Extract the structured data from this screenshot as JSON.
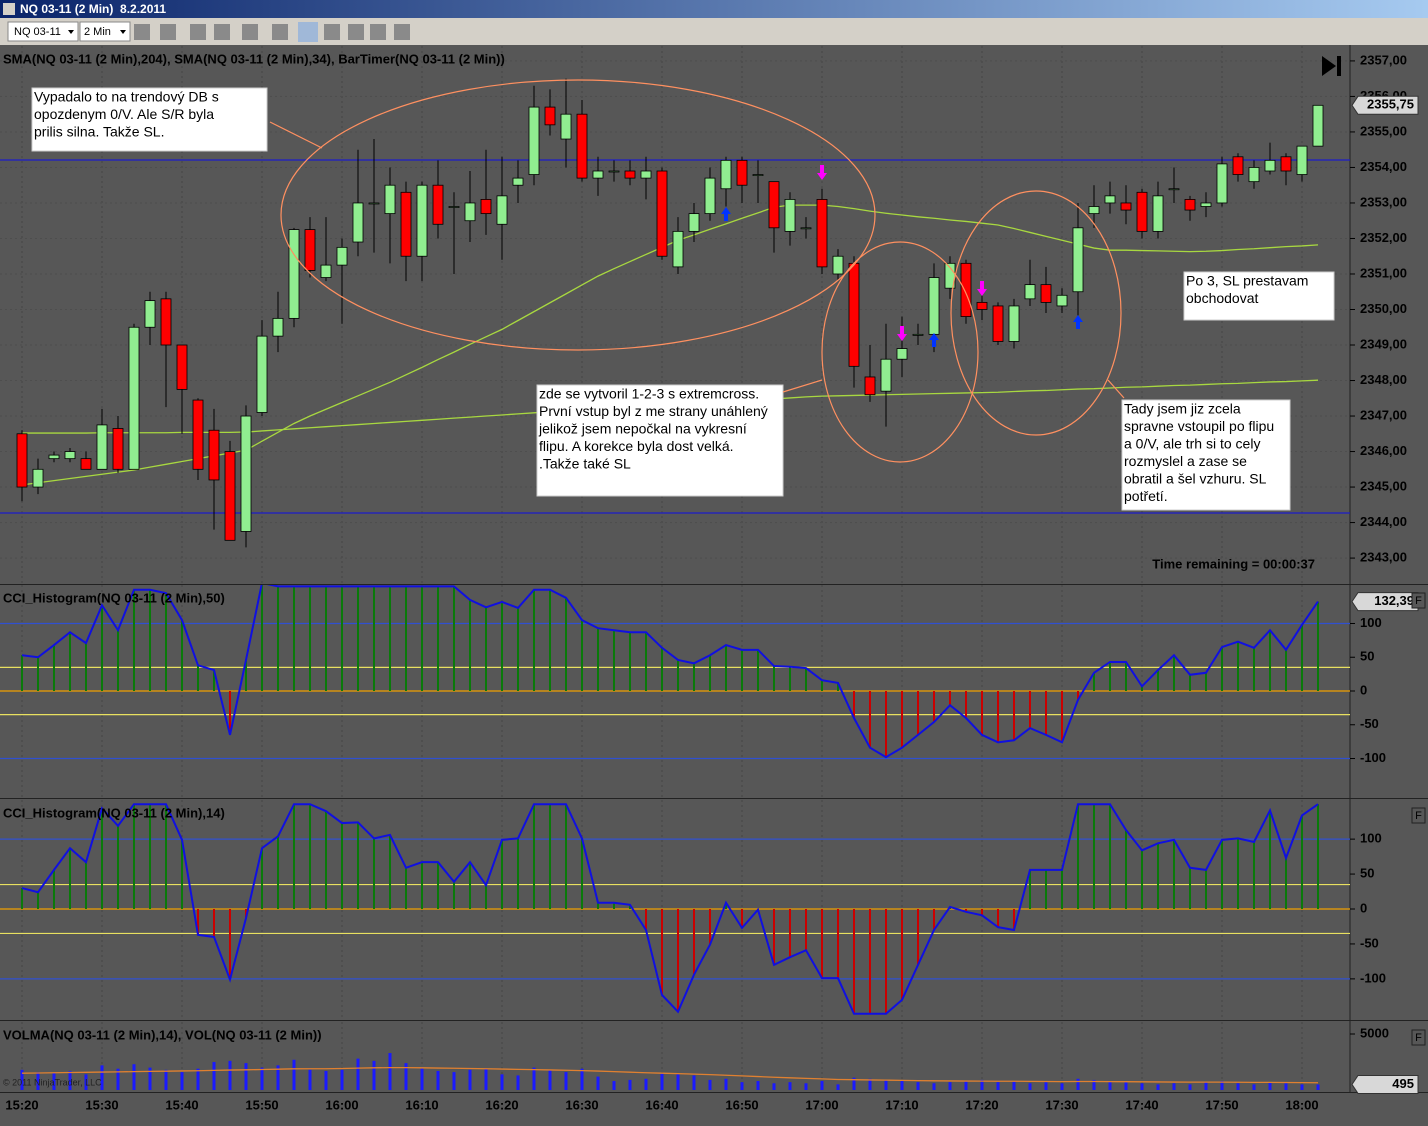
{
  "window": {
    "title": "NQ 03-11 (2 Min)  8.2.2011",
    "instrument": "NQ 03-11",
    "period": "2 Min",
    "copyright": "© 2011 NinjaTrader, LLC"
  },
  "chart_data": [
    {
      "type": "candlestick",
      "title": "SMA(NQ 03-11 (2 Min),204), SMA(NQ 03-11 (2 Min),34), BarTimer(NQ 03-11 (2 Min))",
      "open": [
        2346.5,
        2345.0,
        2345.8,
        2345.8,
        2345.8,
        2345.5,
        2346.65,
        2345.5,
        2349.5,
        2350.3,
        2349.0,
        2347.45,
        2346.6,
        2346.0,
        2343.75,
        2347.1,
        2349.25,
        2349.75,
        2352.25,
        2350.9,
        2351.25,
        2351.9,
        2353.0,
        2352.7,
        2353.3,
        2351.5,
        2353.5,
        2352.9,
        2352.5,
        2353.1,
        2352.4,
        2353.5,
        2353.8,
        2355.7,
        2354.8,
        2355.5,
        2353.7,
        2353.9,
        2353.9,
        2353.7,
        2353.9,
        2351.2,
        2352.2,
        2352.7,
        2353.4,
        2354.2,
        2353.8,
        2353.6,
        2352.2,
        2352.3,
        2353.1,
        2351.0,
        2351.3,
        2348.1,
        2347.7,
        2348.6,
        2349.3,
        2349.3,
        2350.6,
        2351.3,
        2350.2,
        2350.1,
        2349.1,
        2350.3,
        2350.7,
        2350.1,
        2350.5,
        2352.7,
        2353.0,
        2353.0,
        2353.3,
        2352.2,
        2353.4,
        2353.1,
        2352.9,
        2353.0,
        2354.3,
        2353.6,
        2353.9,
        2354.3,
        2353.8,
        2354.6
      ],
      "high": [
        2346.6,
        2345.8,
        2346.0,
        2346.1,
        2346.0,
        2347.2,
        2347.0,
        2349.6,
        2350.5,
        2350.5,
        2349.0,
        2347.5,
        2347.2,
        2346.3,
        2347.3,
        2349.7,
        2350.5,
        2352.3,
        2352.6,
        2352.6,
        2352.0,
        2354.5,
        2354.8,
        2354.0,
        2353.6,
        2353.6,
        2354.2,
        2353.3,
        2353.9,
        2354.5,
        2354.3,
        2354.2,
        2356.3,
        2356.2,
        2356.5,
        2355.9,
        2354.3,
        2354.2,
        2354.2,
        2354.3,
        2354.0,
        2352.6,
        2353.0,
        2354.0,
        2354.3,
        2354.3,
        2354.2,
        2353.6,
        2353.3,
        2352.6,
        2353.4,
        2351.7,
        2351.5,
        2349.0,
        2349.6,
        2349.8,
        2349.6,
        2351.3,
        2351.5,
        2351.4,
        2350.4,
        2350.2,
        2350.3,
        2351.4,
        2351.2,
        2350.6,
        2353.0,
        2353.5,
        2353.6,
        2353.5,
        2353.4,
        2353.6,
        2354.0,
        2353.2,
        2353.3,
        2354.3,
        2354.4,
        2354.2,
        2354.7,
        2354.4,
        2354.6,
        2355.75
      ],
      "low": [
        2344.6,
        2344.8,
        2345.7,
        2345.7,
        2345.5,
        2345.5,
        2345.4,
        2345.5,
        2349.0,
        2347.25,
        2346.5,
        2345.2,
        2343.8,
        2343.5,
        2343.3,
        2347.0,
        2348.8,
        2349.5,
        2350.9,
        2350.8,
        2349.6,
        2351.5,
        2351.6,
        2351.3,
        2350.8,
        2350.8,
        2352.0,
        2351.0,
        2351.9,
        2352.1,
        2351.4,
        2353.0,
        2353.5,
        2354.9,
        2354.0,
        2353.6,
        2353.2,
        2353.6,
        2353.5,
        2353.1,
        2351.4,
        2351.0,
        2351.9,
        2352.5,
        2352.9,
        2353.0,
        2353.0,
        2351.6,
        2351.8,
        2352.0,
        2351.0,
        2350.8,
        2347.8,
        2347.4,
        2346.7,
        2348.1,
        2349.0,
        2348.8,
        2350.3,
        2349.6,
        2349.7,
        2349.0,
        2348.9,
        2350.1,
        2349.9,
        2349.9,
        2349.8,
        2352.3,
        2352.7,
        2352.4,
        2352.0,
        2352.0,
        2353.0,
        2352.5,
        2352.6,
        2352.9,
        2353.6,
        2353.4,
        2353.8,
        2353.5,
        2353.6,
        2354.6
      ],
      "close": [
        2345.0,
        2345.5,
        2345.9,
        2346.0,
        2345.5,
        2346.75,
        2345.5,
        2349.5,
        2350.25,
        2349.0,
        2347.75,
        2345.5,
        2345.2,
        2343.5,
        2347.0,
        2349.25,
        2349.75,
        2352.25,
        2351.1,
        2351.25,
        2351.75,
        2353.0,
        2353.0,
        2353.5,
        2351.5,
        2353.5,
        2352.4,
        2352.9,
        2353.0,
        2352.7,
        2353.2,
        2353.7,
        2355.7,
        2355.2,
        2355.5,
        2353.7,
        2353.9,
        2353.9,
        2353.7,
        2353.9,
        2351.5,
        2352.2,
        2352.7,
        2353.7,
        2354.2,
        2353.5,
        2353.8,
        2352.3,
        2353.1,
        2352.3,
        2351.2,
        2351.5,
        2348.4,
        2347.6,
        2348.6,
        2348.9,
        2349.3,
        2350.9,
        2351.3,
        2349.8,
        2350.0,
        2349.1,
        2350.1,
        2350.7,
        2350.2,
        2350.4,
        2352.3,
        2352.9,
        2353.2,
        2352.8,
        2352.2,
        2353.2,
        2353.4,
        2352.8,
        2353.0,
        2354.1,
        2353.8,
        2354.0,
        2354.2,
        2353.9,
        2354.6,
        2355.75
      ],
      "up_color": "#90ee90",
      "down_color": "#ff0000",
      "lines": [
        {
          "color": "#a8d840",
          "values": [
            2346.52,
            2346.52,
            2346.52,
            2346.52,
            2346.52,
            2346.53,
            2346.53,
            2346.53,
            2346.53,
            2346.53,
            2346.54,
            2346.54,
            2346.54,
            2346.54,
            2346.55,
            2346.58,
            2346.61,
            2346.64,
            2346.67,
            2346.7,
            2346.73,
            2346.76,
            2346.79,
            2346.82,
            2346.85,
            2346.88,
            2346.91,
            2346.94,
            2346.97,
            2347.0,
            2347.03,
            2347.06,
            2347.09,
            2347.12,
            2347.15,
            2347.17,
            2347.2,
            2347.22,
            2347.25,
            2347.28,
            2347.3,
            2347.33,
            2347.35,
            2347.38,
            2347.41,
            2347.43,
            2347.46,
            2347.48,
            2347.51,
            2347.54,
            2347.56,
            2347.57,
            2347.58,
            2347.59,
            2347.6,
            2347.61,
            2347.62,
            2347.63,
            2347.64,
            2347.65,
            2347.66,
            2347.67,
            2347.69,
            2347.71,
            2347.72,
            2347.74,
            2347.76,
            2347.77,
            2347.79,
            2347.81,
            2347.82,
            2347.84,
            2347.86,
            2347.87,
            2347.89,
            2347.91,
            2347.92,
            2347.94,
            2347.96,
            2347.97,
            2347.99,
            2348.01
          ]
        },
        {
          "color": "#a8d840",
          "values": [
            2345.06,
            2345.12,
            2345.18,
            2345.24,
            2345.3,
            2345.36,
            2345.42,
            2345.48,
            2345.56,
            2345.64,
            2345.72,
            2345.8,
            2345.88,
            2345.96,
            2346.04,
            2346.29,
            2346.54,
            2346.79,
            2347.0,
            2347.19,
            2347.38,
            2347.57,
            2347.76,
            2347.95,
            2348.16,
            2348.37,
            2348.59,
            2348.8,
            2349.02,
            2349.23,
            2349.44,
            2349.69,
            2349.94,
            2350.19,
            2350.44,
            2350.69,
            2350.94,
            2351.15,
            2351.35,
            2351.55,
            2351.75,
            2351.95,
            2352.1,
            2352.26,
            2352.41,
            2352.57,
            2352.72,
            2352.88,
            2352.94,
            2352.94,
            2352.94,
            2352.9,
            2352.84,
            2352.77,
            2352.71,
            2352.66,
            2352.61,
            2352.57,
            2352.52,
            2352.48,
            2352.43,
            2352.38,
            2352.28,
            2352.17,
            2352.06,
            2351.95,
            2351.84,
            2351.73,
            2351.67,
            2351.67,
            2351.66,
            2351.65,
            2351.64,
            2351.63,
            2351.64,
            2351.66,
            2351.69,
            2351.71,
            2351.74,
            2351.77,
            2351.79,
            2351.82
          ]
        }
      ],
      "hlines": [
        {
          "value": 2354.21,
          "color": "#1c1cc8"
        },
        {
          "value": 2344.27,
          "color": "#1c1cc8"
        }
      ],
      "ylim": [
        2342.27,
        2357.42
      ],
      "yticks": [
        {
          "value": 2343,
          "label": "2343,00"
        },
        {
          "value": 2344,
          "label": "2344,00"
        },
        {
          "value": 2345,
          "label": "2345,00"
        },
        {
          "value": 2346,
          "label": "2346,00"
        },
        {
          "value": 2347,
          "label": "2347,00"
        },
        {
          "value": 2348,
          "label": "2348,00"
        },
        {
          "value": 2349,
          "label": "2349,00"
        },
        {
          "value": 2350,
          "label": "2350,00"
        },
        {
          "value": 2351,
          "label": "2351,00"
        },
        {
          "value": 2352,
          "label": "2352,00"
        },
        {
          "value": 2353,
          "label": "2353,00"
        },
        {
          "value": 2354,
          "label": "2354,00"
        },
        {
          "value": 2355,
          "label": "2355,00"
        },
        {
          "value": 2356,
          "label": "2356,00"
        },
        {
          "value": 2357,
          "label": "2357,00"
        }
      ],
      "last_value": {
        "value": 2355.75,
        "label": "2355,75"
      },
      "bar_timer": "Time remaining = 00:00:37",
      "annotations": [
        {
          "lines": [
            "Vypadalo to na trendový DB s",
            "opozdenym 0/V. Ale S/R byla",
            "prilis silna. Takže SL."
          ]
        },
        {
          "lines": [
            "zde se vytvoril 1-2-3 s extremcross.",
            "První vstup byl z me strany unáhlený",
            "jelikož jsem nepočkal na vykresní",
            "flipu. A korekce byla dost velká.",
            ".Takže také SL"
          ]
        },
        {
          "lines": [
            "Tady jsem jiz zcela",
            "spravne vstoupil po flipu",
            "a 0/V, ale trh si to cely",
            "rozmyslel a zase se",
            "obratil a šel vzhuru. SL",
            "potřetí."
          ]
        },
        {
          "lines": [
            "Po 3, SL prestavam",
            "obchodovat"
          ]
        }
      ]
    },
    {
      "type": "cci",
      "title": "CCI_Histogram(NQ 03-11 (2 Min),50)",
      "values": [
        53,
        50,
        68,
        87,
        71,
        127,
        90,
        150,
        150,
        145,
        105,
        38,
        31,
        -65,
        46,
        160,
        155,
        155,
        155,
        155,
        155,
        155,
        155,
        155,
        155,
        155,
        155,
        155,
        135,
        124,
        132,
        123,
        150,
        150,
        138,
        105,
        93,
        90,
        87,
        87,
        64,
        46,
        41,
        53,
        68,
        61,
        61,
        37,
        36,
        34,
        16,
        12,
        -40,
        -84,
        -98,
        -84,
        -65,
        -46,
        -21,
        -40,
        -65,
        -76,
        -73,
        -55,
        -65,
        -76,
        -13,
        27,
        43,
        43,
        7,
        31,
        53,
        24,
        27,
        65,
        73,
        64,
        90,
        61,
        98,
        132.39
      ],
      "line_color": "#1010e0",
      "pos_color": "#0a7a0a",
      "neg_color": "#cc0000",
      "hlines": [
        {
          "value": 100,
          "color": "#3050d0"
        },
        {
          "value": 35,
          "color": "#e8e060"
        },
        {
          "value": 0,
          "color": "#f0a000"
        },
        {
          "value": -35,
          "color": "#e8e060"
        },
        {
          "value": -100,
          "color": "#3050d0"
        }
      ],
      "ylim": [
        -157,
        157
      ],
      "yticks": [
        100,
        50,
        0,
        -50,
        -100
      ],
      "last_value": {
        "value": 132.39,
        "label": "132,39"
      },
      "flag": "F"
    },
    {
      "type": "cci",
      "title": "CCI_Histogram(NQ 03-11 (2 Min),14)",
      "values": [
        30,
        24,
        56,
        87,
        67,
        144,
        119,
        150,
        150,
        150,
        99,
        -37,
        -40,
        -101,
        -13,
        87,
        104,
        150,
        150,
        140,
        123,
        124,
        101,
        106,
        59,
        67,
        67,
        39,
        67,
        34,
        99,
        101,
        150,
        150,
        150,
        101,
        9,
        9,
        6,
        -30,
        -123,
        -147,
        -94,
        -51,
        9,
        -27,
        -1,
        -80,
        -69,
        -59,
        -99,
        -99,
        -150,
        -150,
        -150,
        -130,
        -80,
        -30,
        3,
        -4,
        -9,
        -26,
        -30,
        56,
        56,
        56,
        150,
        150,
        150,
        113,
        84,
        94,
        99,
        59,
        56,
        99,
        101,
        96,
        141,
        73,
        134,
        150
      ],
      "line_color": "#1010e0",
      "pos_color": "#0a7a0a",
      "neg_color": "#cc0000",
      "hlines": [
        {
          "value": 100,
          "color": "#3050d0"
        },
        {
          "value": 35,
          "color": "#e8e060"
        },
        {
          "value": 0,
          "color": "#f0a000"
        },
        {
          "value": -35,
          "color": "#e8e060"
        },
        {
          "value": -100,
          "color": "#3050d0"
        }
      ],
      "ylim": [
        -156,
        156
      ],
      "yticks": [
        100,
        50,
        0,
        -50,
        -100
      ],
      "flag": "F"
    },
    {
      "type": "volume",
      "title": "VOLMA(NQ 03-11 (2 Min),14), VOL(NQ 03-11 (2 Min))",
      "values": [
        1800,
        1600,
        1500,
        1700,
        1400,
        2200,
        1900,
        2300,
        2000,
        1800,
        1600,
        1900,
        2500,
        2600,
        2400,
        2000,
        2200,
        2700,
        1800,
        1700,
        1800,
        2800,
        2600,
        3300,
        2400,
        1900,
        1700,
        1600,
        1800,
        1900,
        1400,
        1300,
        2000,
        1800,
        1600,
        1900,
        1200,
        800,
        900,
        1000,
        1500,
        1400,
        1300,
        900,
        1000,
        700,
        800,
        600,
        700,
        600,
        800,
        500,
        1100,
        1000,
        900,
        800,
        700,
        600,
        700,
        800,
        900,
        700,
        800,
        600,
        700,
        600,
        1000,
        900,
        800,
        700,
        600,
        500,
        600,
        500,
        700,
        800,
        600,
        500,
        700,
        600,
        500,
        495
      ],
      "ma_values": [
        1500,
        1520,
        1540,
        1560,
        1580,
        1600,
        1620,
        1640,
        1660,
        1680,
        1700,
        1720,
        1750,
        1780,
        1800,
        1830,
        1860,
        1890,
        1900,
        1900,
        1920,
        1950,
        1980,
        2000,
        2000,
        1980,
        1960,
        1940,
        1920,
        1900,
        1870,
        1840,
        1820,
        1790,
        1760,
        1730,
        1690,
        1640,
        1590,
        1540,
        1500,
        1460,
        1420,
        1370,
        1320,
        1260,
        1200,
        1140,
        1090,
        1040,
        990,
        940,
        920,
        900,
        880,
        860,
        840,
        820,
        810,
        800,
        790,
        780,
        780,
        770,
        760,
        750,
        760,
        760,
        750,
        740,
        730,
        720,
        710,
        700,
        700,
        700,
        690,
        680,
        680,
        670,
        660,
        650
      ],
      "color": "#1a1aff",
      "ma_color": "#e08030",
      "ylim": [
        0,
        6070
      ],
      "yticks": [
        5000
      ],
      "last_value": {
        "value": 495,
        "label": "495"
      },
      "flag": "F",
      "categories": [
        "15:20",
        null,
        null,
        null,
        null,
        "15:30",
        null,
        null,
        null,
        null,
        "15:40",
        null,
        null,
        null,
        null,
        "15:50",
        null,
        null,
        null,
        null,
        "16:00",
        null,
        null,
        null,
        null,
        "16:10",
        null,
        null,
        null,
        null,
        "16:20",
        null,
        null,
        null,
        null,
        "16:30",
        null,
        null,
        null,
        null,
        "16:40",
        null,
        null,
        null,
        null,
        "16:50",
        null,
        null,
        null,
        null,
        "17:00",
        null,
        null,
        null,
        null,
        "17:10",
        null,
        null,
        null,
        null,
        "17:20",
        null,
        null,
        null,
        null,
        "17:30",
        null,
        null,
        null,
        null,
        "17:40",
        null,
        null,
        null,
        null,
        "17:50",
        null,
        null,
        null,
        null,
        "18:00",
        null
      ]
    }
  ]
}
